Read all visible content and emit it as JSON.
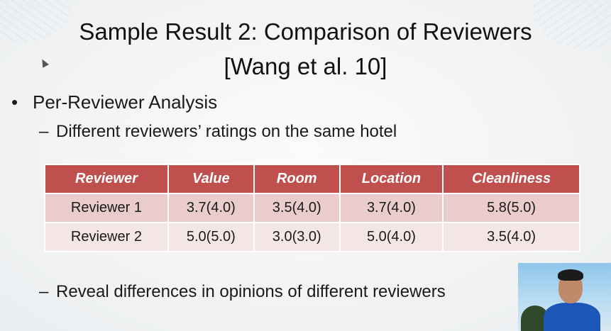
{
  "slide": {
    "title_line1": "Sample Result 2: Comparison of Reviewers",
    "title_line2": "[Wang et al. 10]",
    "bullet_marker": "•",
    "bullet": "Per-Reviewer Analysis",
    "dash": "–",
    "sub_bullet_1": "Different reviewers’ ratings on the same hotel",
    "sub_bullet_2": "Reveal differences in opinions of different reviewers"
  },
  "table": {
    "headers": [
      "Reviewer",
      "Value",
      "Room",
      "Location",
      "Cleanliness"
    ],
    "rows": [
      [
        "Reviewer 1",
        "3.7(4.0)",
        "3.5(4.0)",
        "3.7(4.0)",
        "5.8(5.0)"
      ],
      [
        "Reviewer 2",
        "5.0(5.0)",
        "3.0(3.0)",
        "5.0(4.0)",
        "3.5(4.0)"
      ]
    ]
  },
  "colors": {
    "header_bg": "#c0504d",
    "row1_bg": "#e9cccb",
    "row2_bg": "#f4e6e6"
  },
  "icons": {
    "cursor": "mouse-pointer-icon"
  }
}
